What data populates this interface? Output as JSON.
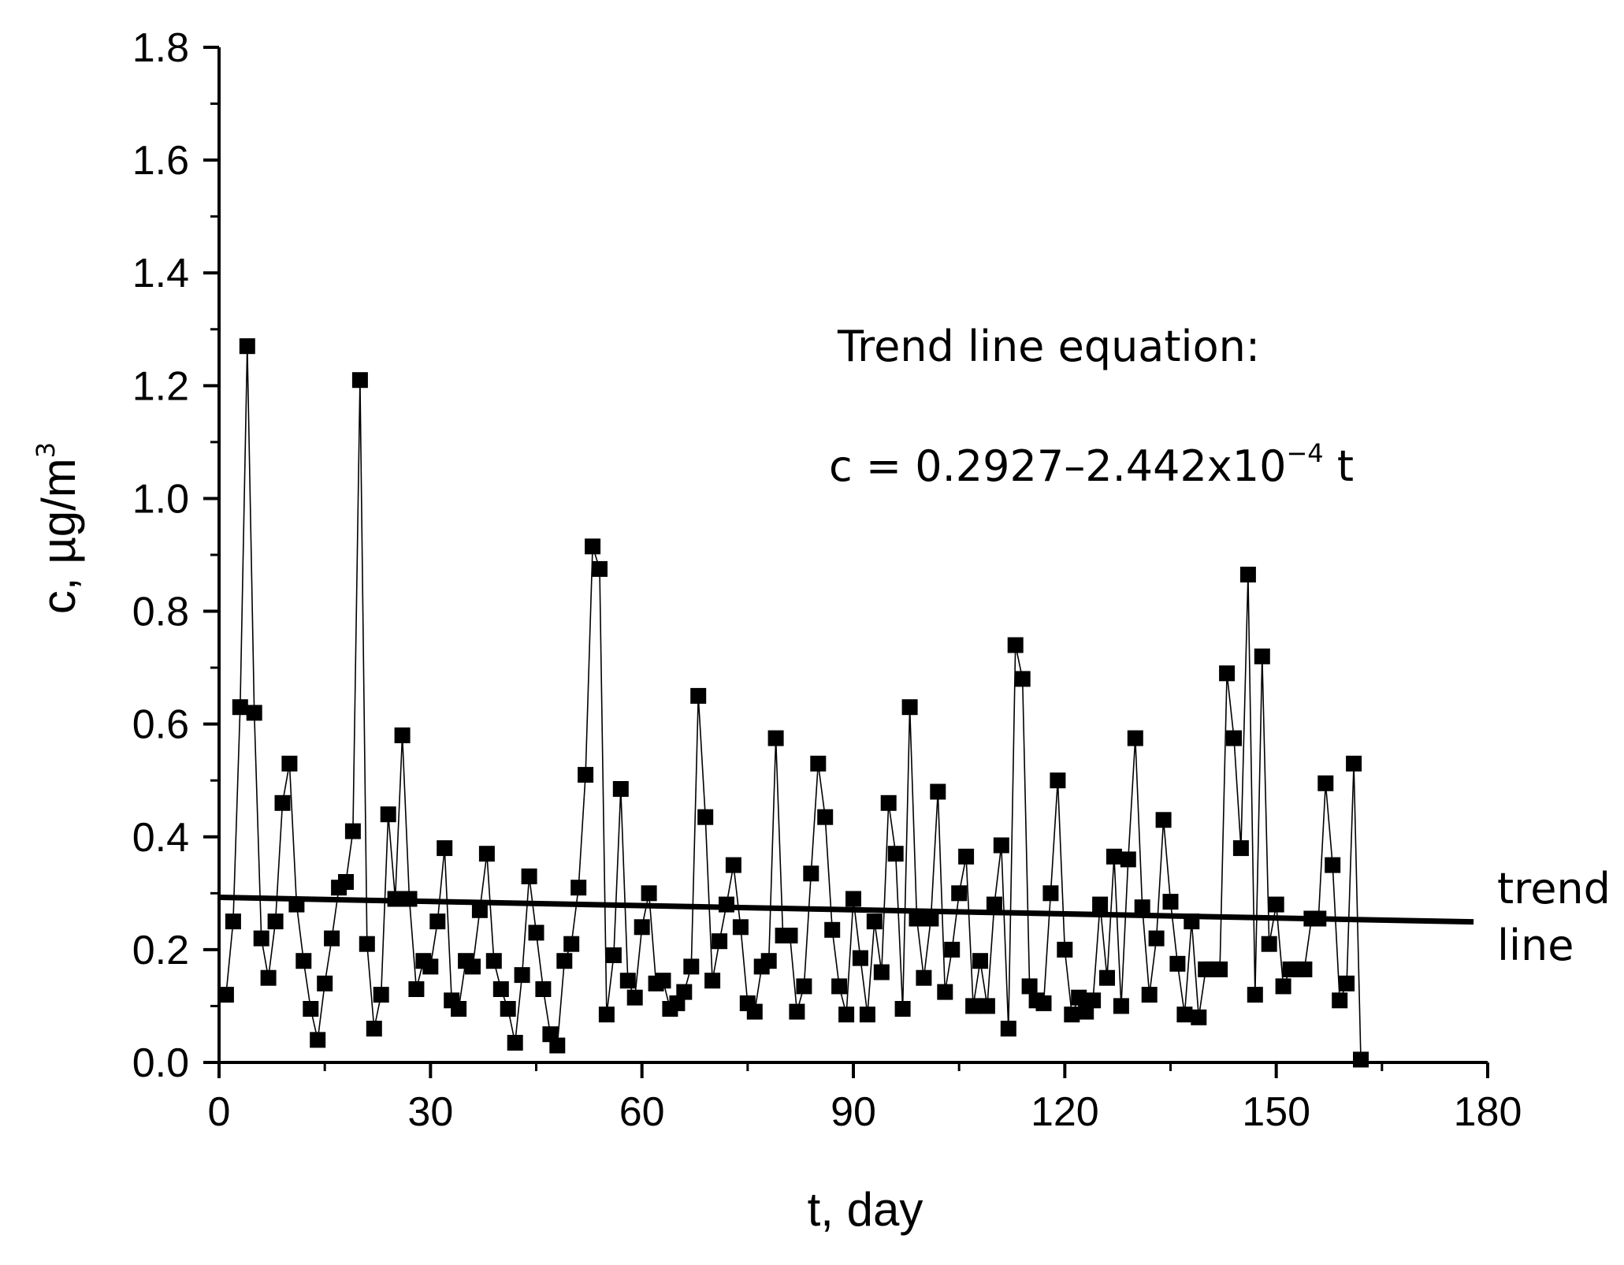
{
  "chart_data": {
    "type": "scatter",
    "title": "",
    "xlabel": "t, day",
    "ylabel": {
      "base": "c, µg/m",
      "sup": "3"
    },
    "xlim": [
      0,
      180
    ],
    "ylim": [
      0,
      1.8
    ],
    "x_ticks": [
      0,
      30,
      60,
      90,
      120,
      150,
      180
    ],
    "x_tick_labels": [
      "0",
      "30",
      "60",
      "90",
      "120",
      "150",
      "180"
    ],
    "y_ticks": [
      0,
      0.2,
      0.4,
      0.6,
      0.8,
      1.0,
      1.2,
      1.4,
      1.6,
      1.8
    ],
    "y_tick_labels": [
      "0.0",
      "0.2",
      "0.4",
      "0.6",
      "0.8",
      "1.0",
      "1.2",
      "1.4",
      "1.6",
      "1.8"
    ],
    "grid": false,
    "marker": "square",
    "series": [
      {
        "x": [
          1,
          2,
          3,
          4,
          5,
          6,
          7,
          8,
          9,
          10,
          11,
          12,
          13,
          14,
          15,
          16,
          17,
          18,
          19,
          20,
          21,
          22,
          23,
          24,
          25,
          26,
          27,
          28,
          29,
          30,
          31,
          32,
          33,
          34,
          35,
          36,
          37,
          38,
          39,
          40,
          41,
          42,
          43,
          44,
          45,
          46,
          47,
          48,
          49,
          50,
          51,
          52,
          53,
          54,
          55,
          56,
          57,
          58,
          59,
          60,
          61,
          62,
          63,
          64,
          65,
          66,
          67,
          68,
          69,
          70,
          71,
          72,
          73,
          74,
          75,
          76,
          77,
          78,
          79,
          80,
          81,
          82,
          83,
          84,
          85,
          86,
          87,
          88,
          89,
          90,
          91,
          92,
          93,
          94,
          95,
          96,
          97,
          98,
          99,
          100,
          101,
          102,
          103,
          104,
          105,
          106,
          107,
          108,
          109,
          110,
          111,
          112,
          113,
          114,
          115,
          116,
          117,
          118,
          119,
          120,
          121,
          122,
          123,
          124,
          125,
          126,
          127,
          128,
          129,
          130,
          131,
          132,
          133,
          134,
          135,
          136,
          137,
          138,
          139,
          140,
          141,
          142,
          143,
          144,
          145,
          146,
          147,
          148,
          149,
          150,
          151,
          152,
          153,
          154,
          155,
          156,
          157,
          158,
          159,
          160,
          161,
          162
        ],
        "y": [
          0.12,
          0.25,
          0.63,
          1.27,
          0.62,
          0.22,
          0.15,
          0.25,
          0.46,
          0.53,
          0.28,
          0.18,
          0.095,
          0.04,
          0.14,
          0.22,
          0.31,
          0.32,
          0.41,
          1.21,
          0.21,
          0.06,
          0.12,
          0.44,
          0.29,
          0.58,
          0.29,
          0.13,
          0.18,
          0.17,
          0.25,
          0.38,
          0.11,
          0.095,
          0.18,
          0.17,
          0.27,
          0.37,
          0.18,
          0.13,
          0.095,
          0.035,
          0.155,
          0.33,
          0.23,
          0.13,
          0.05,
          0.03,
          0.18,
          0.21,
          0.31,
          0.51,
          0.915,
          0.875,
          0.085,
          0.19,
          0.485,
          0.145,
          0.115,
          0.24,
          0.3,
          0.14,
          0.145,
          0.095,
          0.105,
          0.125,
          0.17,
          0.65,
          0.435,
          0.145,
          0.215,
          0.28,
          0.35,
          0.24,
          0.105,
          0.09,
          0.17,
          0.18,
          0.575,
          0.225,
          0.225,
          0.09,
          0.135,
          0.335,
          0.53,
          0.435,
          0.235,
          0.135,
          0.085,
          0.29,
          0.185,
          0.085,
          0.25,
          0.16,
          0.46,
          0.37,
          0.095,
          0.63,
          0.255,
          0.15,
          0.255,
          0.48,
          0.125,
          0.2,
          0.3,
          0.365,
          0.1,
          0.18,
          0.1,
          0.28,
          0.385,
          0.06,
          0.74,
          0.68,
          0.135,
          0.11,
          0.105,
          0.3,
          0.5,
          0.2,
          0.085,
          0.115,
          0.09,
          0.11,
          0.28,
          0.15,
          0.365,
          0.1,
          0.36,
          0.575,
          0.275,
          0.12,
          0.22,
          0.43,
          0.285,
          0.175,
          0.085,
          0.25,
          0.08,
          0.165,
          0.165,
          0.165,
          0.69,
          0.575,
          0.38,
          0.865,
          0.12,
          0.72,
          0.21,
          0.28,
          0.135,
          0.165,
          0.165,
          0.165,
          0.255,
          0.255,
          0.495,
          0.35,
          0.11,
          0.14,
          0.53,
          0.005
        ]
      }
    ],
    "trend_line": {
      "intercept": 0.2927,
      "slope": -0.0002442,
      "x_range": [
        0,
        178
      ],
      "label_lines": [
        "trend",
        "line"
      ]
    },
    "annotations": {
      "heading": "Trend line equation:",
      "equation_main": "c = 0.2927–2.442x10",
      "equation_exp": "−4",
      "equation_tail": " t"
    }
  }
}
